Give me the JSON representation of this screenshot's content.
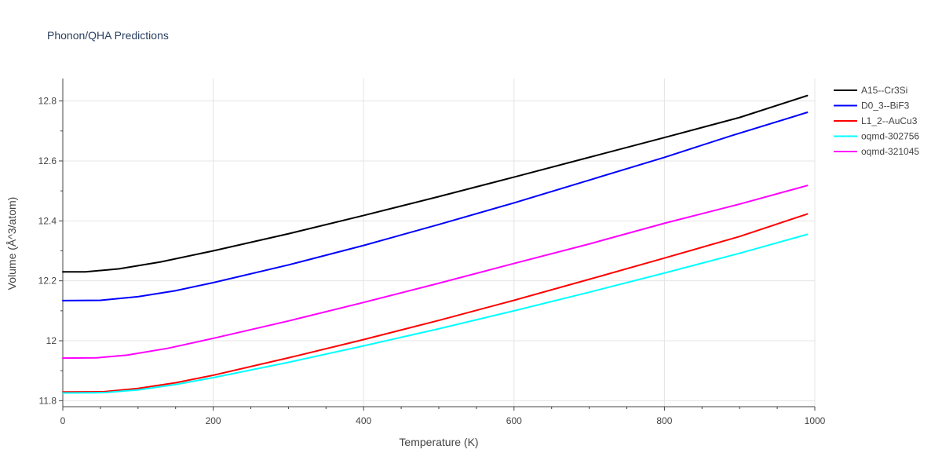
{
  "chart_data": {
    "type": "line",
    "title": "Phonon/QHA Predictions",
    "xlabel": "Temperature (K)",
    "ylabel": "Volume (Å^3/atom)",
    "xlim": [
      0,
      1000
    ],
    "ylim": [
      11.78,
      12.875
    ],
    "xticks": [
      0,
      200,
      400,
      600,
      800,
      1000
    ],
    "xtick_labels": [
      "0",
      "200",
      "400",
      "600",
      "800",
      "1000"
    ],
    "yticks": [
      11.8,
      12,
      12.2,
      12.4,
      12.6,
      12.8
    ],
    "ytick_labels": [
      "11.8",
      "12",
      "12.2",
      "12.4",
      "12.6",
      "12.8"
    ],
    "grid": true,
    "legend_position": "top-right",
    "series": [
      {
        "name": "A15--Cr3Si",
        "color": "#000000",
        "x": [
          0,
          30,
          75,
          130,
          200,
          300,
          400,
          500,
          600,
          700,
          800,
          900,
          990
        ],
        "y": [
          12.23,
          12.23,
          12.24,
          12.263,
          12.3,
          12.357,
          12.418,
          12.481,
          12.546,
          12.612,
          12.678,
          12.745,
          12.818
        ]
      },
      {
        "name": "D0_3--BiF3",
        "color": "#0000ff",
        "x": [
          0,
          50,
          100,
          150,
          200,
          300,
          400,
          500,
          600,
          700,
          800,
          890,
          990
        ],
        "y": [
          12.134,
          12.135,
          12.147,
          12.167,
          12.194,
          12.253,
          12.318,
          12.388,
          12.46,
          12.536,
          12.612,
          12.685,
          12.762
        ]
      },
      {
        "name": "L1_2--AuCu3",
        "color": "#ff0000",
        "x": [
          0,
          55,
          100,
          150,
          200,
          300,
          400,
          500,
          600,
          700,
          800,
          900,
          990
        ],
        "y": [
          11.829,
          11.83,
          11.841,
          11.86,
          11.885,
          11.943,
          12.004,
          12.068,
          12.135,
          12.205,
          12.276,
          12.348,
          12.423
        ]
      },
      {
        "name": "oqmd-302756",
        "color": "#00ffff",
        "x": [
          0,
          55,
          100,
          150,
          200,
          300,
          400,
          500,
          600,
          700,
          800,
          900,
          990
        ],
        "y": [
          11.826,
          11.827,
          11.836,
          11.854,
          11.877,
          11.928,
          11.983,
          12.04,
          12.1,
          12.162,
          12.226,
          12.292,
          12.355
        ]
      },
      {
        "name": "oqmd-321045",
        "color": "#ff00ff",
        "x": [
          0,
          45,
          85,
          140,
          200,
          300,
          400,
          500,
          600,
          700,
          800,
          900,
          990
        ],
        "y": [
          11.942,
          11.943,
          11.952,
          11.975,
          12.008,
          12.066,
          12.128,
          12.192,
          12.258,
          12.323,
          12.392,
          12.456,
          12.518
        ]
      }
    ]
  }
}
